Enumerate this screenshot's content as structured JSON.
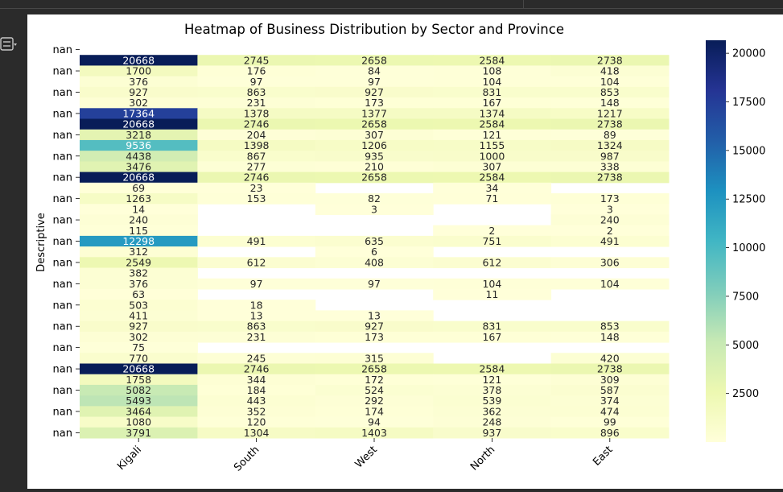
{
  "ui": {
    "toolbar_icon": "output-toggle-icon"
  },
  "chart_data": {
    "type": "heatmap",
    "title": "Heatmap of Business Distribution by Sector and Province",
    "ylabel": "Descriptive",
    "xlabel": "",
    "columns": [
      "Kigali",
      "South",
      "West",
      "North",
      "East"
    ],
    "rows": [
      "nan",
      "nan",
      "nan",
      "nan",
      "nan",
      "nan",
      "nan",
      "nan",
      "nan",
      "nan",
      "nan",
      "nan",
      "nan",
      "nan",
      "nan",
      "nan",
      "nan",
      "nan",
      "nan",
      "nan",
      "nan",
      "nan",
      "nan",
      "nan",
      "nan",
      "nan",
      "nan",
      "nan",
      "nan",
      "nan",
      "nan",
      "nan",
      "nan",
      "nan",
      "nan",
      "nan",
      "nan"
    ],
    "row_labels_shown": [
      "nan",
      "nan",
      "nan",
      "nan",
      "nan",
      "nan",
      "nan",
      "nan",
      "nan",
      "nan",
      "nan",
      "nan",
      "nan",
      "nan",
      "nan",
      "nan",
      "nan",
      "nan",
      "nan",
      "nan"
    ],
    "values": [
      [
        null,
        null,
        null,
        null,
        null
      ],
      [
        20668,
        2745,
        2658,
        2584,
        2738
      ],
      [
        1700,
        176,
        84,
        108,
        418
      ],
      [
        376,
        97,
        97,
        104,
        104
      ],
      [
        927,
        863,
        927,
        831,
        853
      ],
      [
        302,
        231,
        173,
        167,
        148
      ],
      [
        17364,
        1378,
        1377,
        1374,
        1217
      ],
      [
        20668,
        2746,
        2658,
        2584,
        2738
      ],
      [
        3218,
        204,
        307,
        121,
        89
      ],
      [
        9536,
        1398,
        1206,
        1155,
        1324
      ],
      [
        4438,
        867,
        935,
        1000,
        987
      ],
      [
        3476,
        277,
        210,
        307,
        338
      ],
      [
        20668,
        2746,
        2658,
        2584,
        2738
      ],
      [
        69,
        23,
        null,
        34,
        null
      ],
      [
        1263,
        153,
        82,
        71,
        173
      ],
      [
        14,
        null,
        3,
        null,
        3
      ],
      [
        240,
        null,
        null,
        null,
        240
      ],
      [
        115,
        null,
        null,
        2,
        2
      ],
      [
        12298,
        491,
        635,
        751,
        491
      ],
      [
        312,
        null,
        6,
        null,
        null
      ],
      [
        2549,
        612,
        408,
        612,
        306
      ],
      [
        382,
        null,
        null,
        null,
        null
      ],
      [
        376,
        97,
        97,
        104,
        104
      ],
      [
        63,
        null,
        null,
        11,
        null
      ],
      [
        503,
        18,
        null,
        null,
        null
      ],
      [
        411,
        13,
        13,
        null,
        null
      ],
      [
        927,
        863,
        927,
        831,
        853
      ],
      [
        302,
        231,
        173,
        167,
        148
      ],
      [
        75,
        null,
        null,
        null,
        null
      ],
      [
        770,
        245,
        315,
        null,
        420
      ],
      [
        20668,
        2746,
        2658,
        2584,
        2738
      ],
      [
        1758,
        344,
        172,
        121,
        309
      ],
      [
        5082,
        184,
        524,
        378,
        587
      ],
      [
        5493,
        443,
        292,
        539,
        374
      ],
      [
        3464,
        352,
        174,
        362,
        474
      ],
      [
        1080,
        120,
        94,
        248,
        99
      ],
      [
        3791,
        1304,
        1403,
        937,
        896
      ]
    ],
    "colorbar": {
      "colormap": "YlGnBu",
      "min": 2,
      "max": 20668,
      "ticks": [
        2500,
        5000,
        7500,
        10000,
        12500,
        15000,
        17500,
        20000
      ]
    },
    "annotations": "values shown in each cell",
    "grid": false,
    "colors": {
      "background": "#ffffff",
      "text_dark": "#262626",
      "text_light": "#ffffff"
    }
  }
}
